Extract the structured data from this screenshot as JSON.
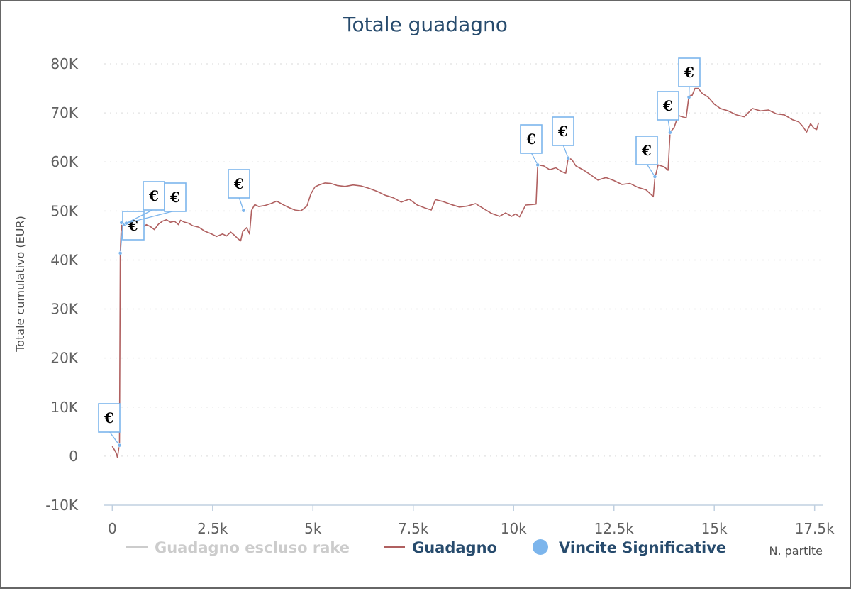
{
  "chart_data": {
    "type": "line",
    "title": "Totale guadagno",
    "xlabel": "N. partite",
    "ylabel": "Totale cumulativo (EUR)",
    "xlim": [
      -200,
      17700
    ],
    "ylim": [
      -10000,
      80000
    ],
    "x_ticks": [
      {
        "value": 0,
        "label": "0"
      },
      {
        "value": 2500,
        "label": "2.5k"
      },
      {
        "value": 5000,
        "label": "5k"
      },
      {
        "value": 7500,
        "label": "7.5k"
      },
      {
        "value": 10000,
        "label": "10k"
      },
      {
        "value": 12500,
        "label": "12.5k"
      },
      {
        "value": 15000,
        "label": "15k"
      },
      {
        "value": 17500,
        "label": "17.5k"
      }
    ],
    "y_ticks": [
      {
        "value": -10000,
        "label": "-10K"
      },
      {
        "value": 0,
        "label": "0"
      },
      {
        "value": 10000,
        "label": "10K"
      },
      {
        "value": 20000,
        "label": "20K"
      },
      {
        "value": 30000,
        "label": "30K"
      },
      {
        "value": 40000,
        "label": "40K"
      },
      {
        "value": 50000,
        "label": "50K"
      },
      {
        "value": 60000,
        "label": "60K"
      },
      {
        "value": 70000,
        "label": "70K"
      },
      {
        "value": 80000,
        "label": "80K"
      }
    ],
    "grid": true,
    "legend_position": "bottom",
    "legend": [
      {
        "name": "Guadagno escluso rake",
        "symbol": "line",
        "color": "#cccccc",
        "text_color": "#cccccc"
      },
      {
        "name": "Guadagno",
        "symbol": "line",
        "color": "#b06060",
        "text_color": "#274b6d"
      },
      {
        "name": "Vincite Significative",
        "symbol": "circle",
        "color": "#7cb5ec",
        "text_color": "#274b6d"
      }
    ],
    "series": [
      {
        "name": "Guadagno",
        "color": "#b06060",
        "points": [
          [
            0,
            2000
          ],
          [
            60,
            1200
          ],
          [
            100,
            600
          ],
          [
            130,
            -300
          ],
          [
            160,
            1500
          ],
          [
            180,
            2200
          ],
          [
            200,
            41400
          ],
          [
            230,
            47800
          ],
          [
            260,
            45500
          ],
          [
            290,
            47200
          ],
          [
            320,
            46300
          ],
          [
            350,
            47600
          ],
          [
            450,
            47000
          ],
          [
            550,
            46200
          ],
          [
            650,
            47100
          ],
          [
            750,
            46600
          ],
          [
            850,
            47200
          ],
          [
            950,
            46800
          ],
          [
            1050,
            46200
          ],
          [
            1150,
            47300
          ],
          [
            1250,
            47900
          ],
          [
            1350,
            48200
          ],
          [
            1450,
            47700
          ],
          [
            1550,
            47900
          ],
          [
            1650,
            47200
          ],
          [
            1700,
            48100
          ],
          [
            1800,
            47700
          ],
          [
            1900,
            47500
          ],
          [
            2000,
            47000
          ],
          [
            2150,
            46700
          ],
          [
            2300,
            45900
          ],
          [
            2450,
            45400
          ],
          [
            2600,
            44800
          ],
          [
            2750,
            45300
          ],
          [
            2850,
            44900
          ],
          [
            2950,
            45700
          ],
          [
            3050,
            45000
          ],
          [
            3150,
            44200
          ],
          [
            3200,
            43900
          ],
          [
            3250,
            45800
          ],
          [
            3350,
            46600
          ],
          [
            3420,
            45300
          ],
          [
            3470,
            50100
          ],
          [
            3550,
            51300
          ],
          [
            3650,
            50900
          ],
          [
            3800,
            51100
          ],
          [
            3950,
            51500
          ],
          [
            4100,
            52000
          ],
          [
            4250,
            51300
          ],
          [
            4400,
            50700
          ],
          [
            4550,
            50200
          ],
          [
            4700,
            50000
          ],
          [
            4850,
            51000
          ],
          [
            4950,
            53500
          ],
          [
            5050,
            54900
          ],
          [
            5150,
            55300
          ],
          [
            5300,
            55700
          ],
          [
            5450,
            55600
          ],
          [
            5600,
            55200
          ],
          [
            5800,
            55000
          ],
          [
            6000,
            55300
          ],
          [
            6200,
            55100
          ],
          [
            6400,
            54600
          ],
          [
            6600,
            54000
          ],
          [
            6800,
            53200
          ],
          [
            7000,
            52700
          ],
          [
            7200,
            51800
          ],
          [
            7400,
            52400
          ],
          [
            7600,
            51200
          ],
          [
            7800,
            50600
          ],
          [
            7950,
            50200
          ],
          [
            8050,
            52300
          ],
          [
            8250,
            51900
          ],
          [
            8450,
            51300
          ],
          [
            8650,
            50800
          ],
          [
            8850,
            51000
          ],
          [
            9050,
            51500
          ],
          [
            9250,
            50500
          ],
          [
            9450,
            49500
          ],
          [
            9650,
            48900
          ],
          [
            9800,
            49600
          ],
          [
            9950,
            48900
          ],
          [
            10050,
            49400
          ],
          [
            10150,
            48800
          ],
          [
            10300,
            51200
          ],
          [
            10450,
            51300
          ],
          [
            10560,
            51400
          ],
          [
            10600,
            59400
          ],
          [
            10750,
            59200
          ],
          [
            10900,
            58400
          ],
          [
            11050,
            58800
          ],
          [
            11200,
            58000
          ],
          [
            11300,
            57700
          ],
          [
            11360,
            60800
          ],
          [
            11450,
            60500
          ],
          [
            11550,
            59200
          ],
          [
            11750,
            58300
          ],
          [
            11950,
            57200
          ],
          [
            12100,
            56300
          ],
          [
            12300,
            56800
          ],
          [
            12500,
            56200
          ],
          [
            12700,
            55400
          ],
          [
            12900,
            55600
          ],
          [
            13100,
            54800
          ],
          [
            13300,
            54300
          ],
          [
            13420,
            53400
          ],
          [
            13480,
            52900
          ],
          [
            13520,
            56600
          ],
          [
            13600,
            59400
          ],
          [
            13750,
            59000
          ],
          [
            13850,
            58300
          ],
          [
            13900,
            66000
          ],
          [
            14000,
            67000
          ],
          [
            14100,
            69500
          ],
          [
            14200,
            69200
          ],
          [
            14300,
            69000
          ],
          [
            14370,
            73500
          ],
          [
            14450,
            73600
          ],
          [
            14520,
            75000
          ],
          [
            14600,
            75000
          ],
          [
            14700,
            74000
          ],
          [
            14850,
            73200
          ],
          [
            15000,
            71800
          ],
          [
            15150,
            70900
          ],
          [
            15350,
            70400
          ],
          [
            15550,
            69600
          ],
          [
            15750,
            69200
          ],
          [
            15950,
            70900
          ],
          [
            16150,
            70400
          ],
          [
            16350,
            70600
          ],
          [
            16550,
            69800
          ],
          [
            16750,
            69600
          ],
          [
            16950,
            68600
          ],
          [
            17100,
            68200
          ],
          [
            17200,
            67300
          ],
          [
            17300,
            66100
          ],
          [
            17400,
            67800
          ],
          [
            17480,
            66900
          ],
          [
            17550,
            66600
          ],
          [
            17600,
            68000
          ]
        ]
      }
    ],
    "markers": {
      "name": "Vincite Significative",
      "color": "#7cb5ec",
      "points": [
        [
          180,
          2200
        ],
        [
          200,
          41400
        ],
        [
          230,
          47600
        ],
        [
          300,
          47300
        ],
        [
          350,
          47500
        ],
        [
          3270,
          50100
        ],
        [
          10600,
          59400
        ],
        [
          11360,
          60800
        ],
        [
          13520,
          57000
        ],
        [
          13900,
          66000
        ],
        [
          14370,
          73200
        ]
      ],
      "label": "€"
    }
  }
}
